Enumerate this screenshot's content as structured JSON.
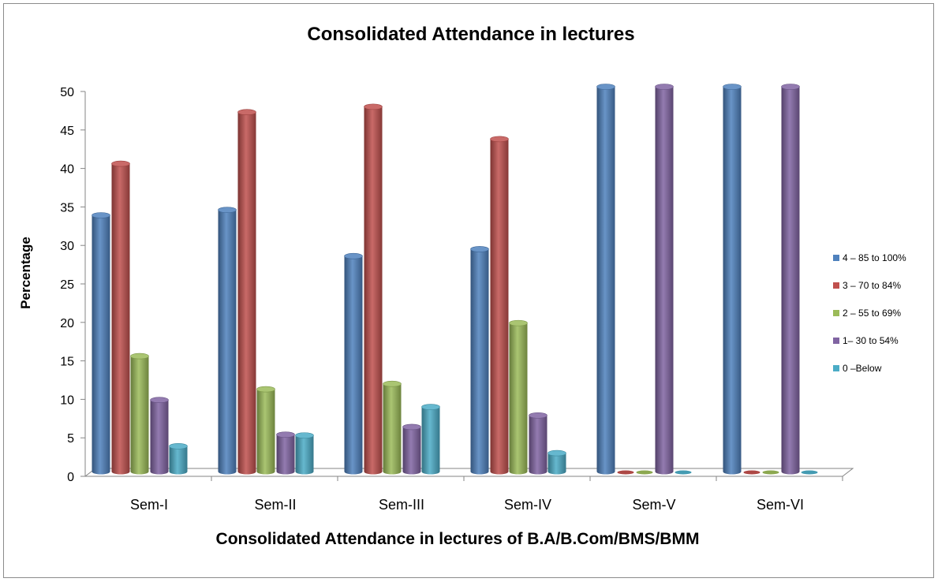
{
  "chart_data": {
    "type": "bar",
    "title": "Consolidated Attendance in lectures",
    "xlabel": "Consolidated Attendance in lectures of B.A/B.Com/BMS/BMM",
    "ylabel": "Percentage",
    "ylim": [
      0,
      50
    ],
    "yticks": [
      "0",
      "5",
      "10",
      "15",
      "20",
      "25",
      "30",
      "35",
      "40",
      "45",
      "50"
    ],
    "categories": [
      "Sem-I",
      "Sem-II",
      "Sem-III",
      "Sem-IV",
      "Sem-V",
      "Sem-VI"
    ],
    "legend_position": "right",
    "grid": false,
    "series": [
      {
        "name": "4 – 85 to 100%",
        "color": "#4f81bd",
        "values": [
          33.3,
          34,
          28,
          28.9,
          50,
          50
        ]
      },
      {
        "name": "3 – 70 to 84%",
        "color": "#c0504d",
        "values": [
          40,
          46.7,
          47.4,
          43.2,
          0,
          0
        ]
      },
      {
        "name": "2 – 55 to 69%",
        "color": "#9bbb59",
        "values": [
          15,
          10.7,
          11.4,
          19.3,
          0,
          0
        ]
      },
      {
        "name": "1– 30 to 54%",
        "color": "#8064a2",
        "values": [
          9.3,
          4.8,
          5.8,
          7.3,
          50,
          50
        ]
      },
      {
        "name": "0 –Below",
        "color": "#4bacc6",
        "values": [
          3.3,
          4.7,
          8.4,
          2.4,
          0,
          0
        ]
      }
    ]
  }
}
